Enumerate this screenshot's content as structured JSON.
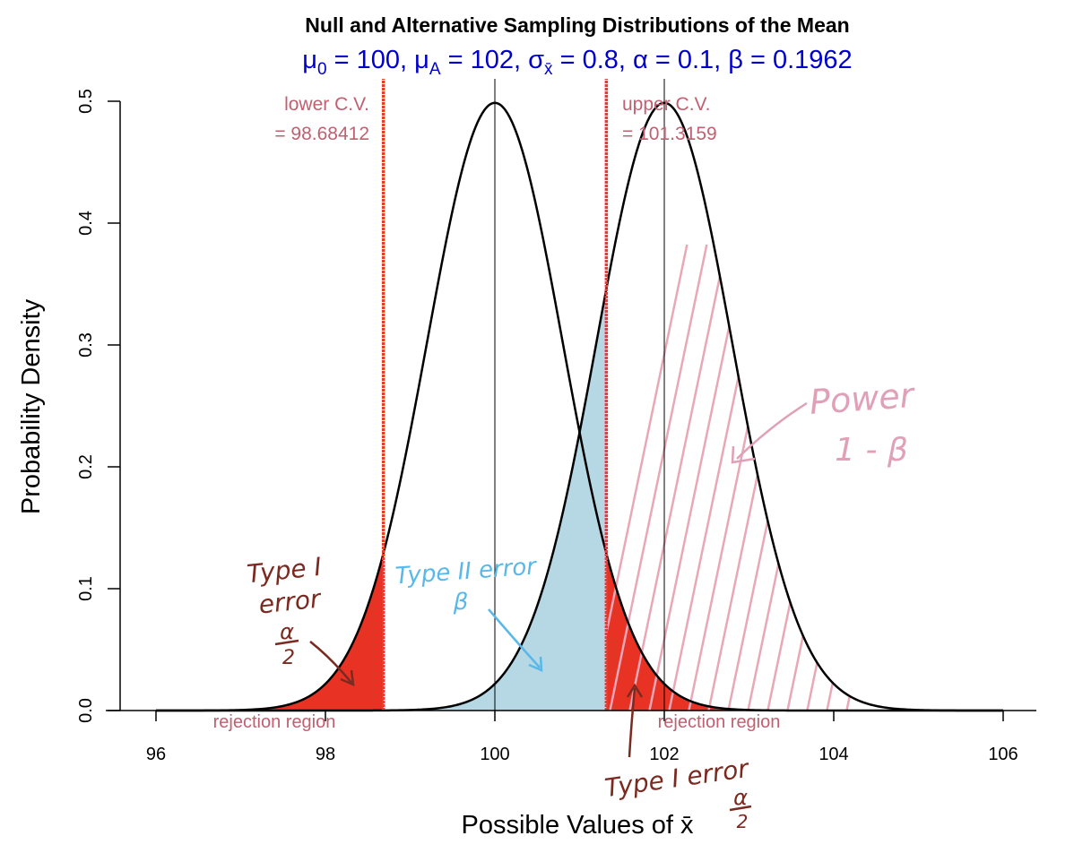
{
  "chart_data": {
    "type": "area",
    "title": "Null and Alternative Sampling Distributions of the Mean",
    "subtitle": {
      "mu0_symbol": "μ",
      "mu0_sub": "0",
      "mu0_val": " = 100, ",
      "muA_symbol": "μ",
      "muA_sub": "A",
      "muA_val": " = 102, ",
      "sigma_symbol": "σ",
      "sigma_sub": "x̄",
      "rest": " = 0.8, α = 0.1, β = 0.1962"
    },
    "xlabel_prefix": "Possible Values of ",
    "xlabel_var": "x̄",
    "ylabel": "Probability Density",
    "xlim": [
      95.6,
      106.4
    ],
    "ylim": [
      0,
      0.5
    ],
    "xticks": [
      "96",
      "98",
      "100",
      "102",
      "104",
      "106"
    ],
    "yticks": [
      "0.0",
      "0.1",
      "0.2",
      "0.3",
      "0.4",
      "0.5"
    ],
    "null_mean": 100,
    "alt_mean": 102,
    "sd": 0.8,
    "lower_cv": 98.68412,
    "upper_cv": 101.3159,
    "series": [
      {
        "mean": 100,
        "sd": 0.8
      },
      {
        "mean": 102,
        "sd": 0.8
      }
    ],
    "colors": {
      "rejection_fill": "#e83224",
      "type2_fill": "#b5d8e4",
      "cv_line": "#e04030",
      "cv_text": "#c06070",
      "power_hatch": "#e8a8b8",
      "handwriting_red": "#7a2a20",
      "handwriting_blue": "#5ab8e8",
      "handwriting_pink": "#e0a0b8"
    }
  },
  "annotations": {
    "lower_cv_line1": "lower C.V.",
    "lower_cv_line2": "= 98.68412",
    "upper_cv_line1": "upper C.V.",
    "upper_cv_line2": "= 101.3159",
    "rejection_left": "rejection region",
    "rejection_right": "rejection region",
    "type1_left_line1": "Type I",
    "type1_left_line2": "error",
    "type1_left_frac_num": "α",
    "type1_left_frac_den": "2",
    "type2_line1": "Type II error",
    "type2_line2": "β",
    "power_line1": "Power",
    "power_line2": "1 - β",
    "type1_right": "Type I error",
    "type1_right_frac_num": "α",
    "type1_right_frac_den": "2"
  }
}
